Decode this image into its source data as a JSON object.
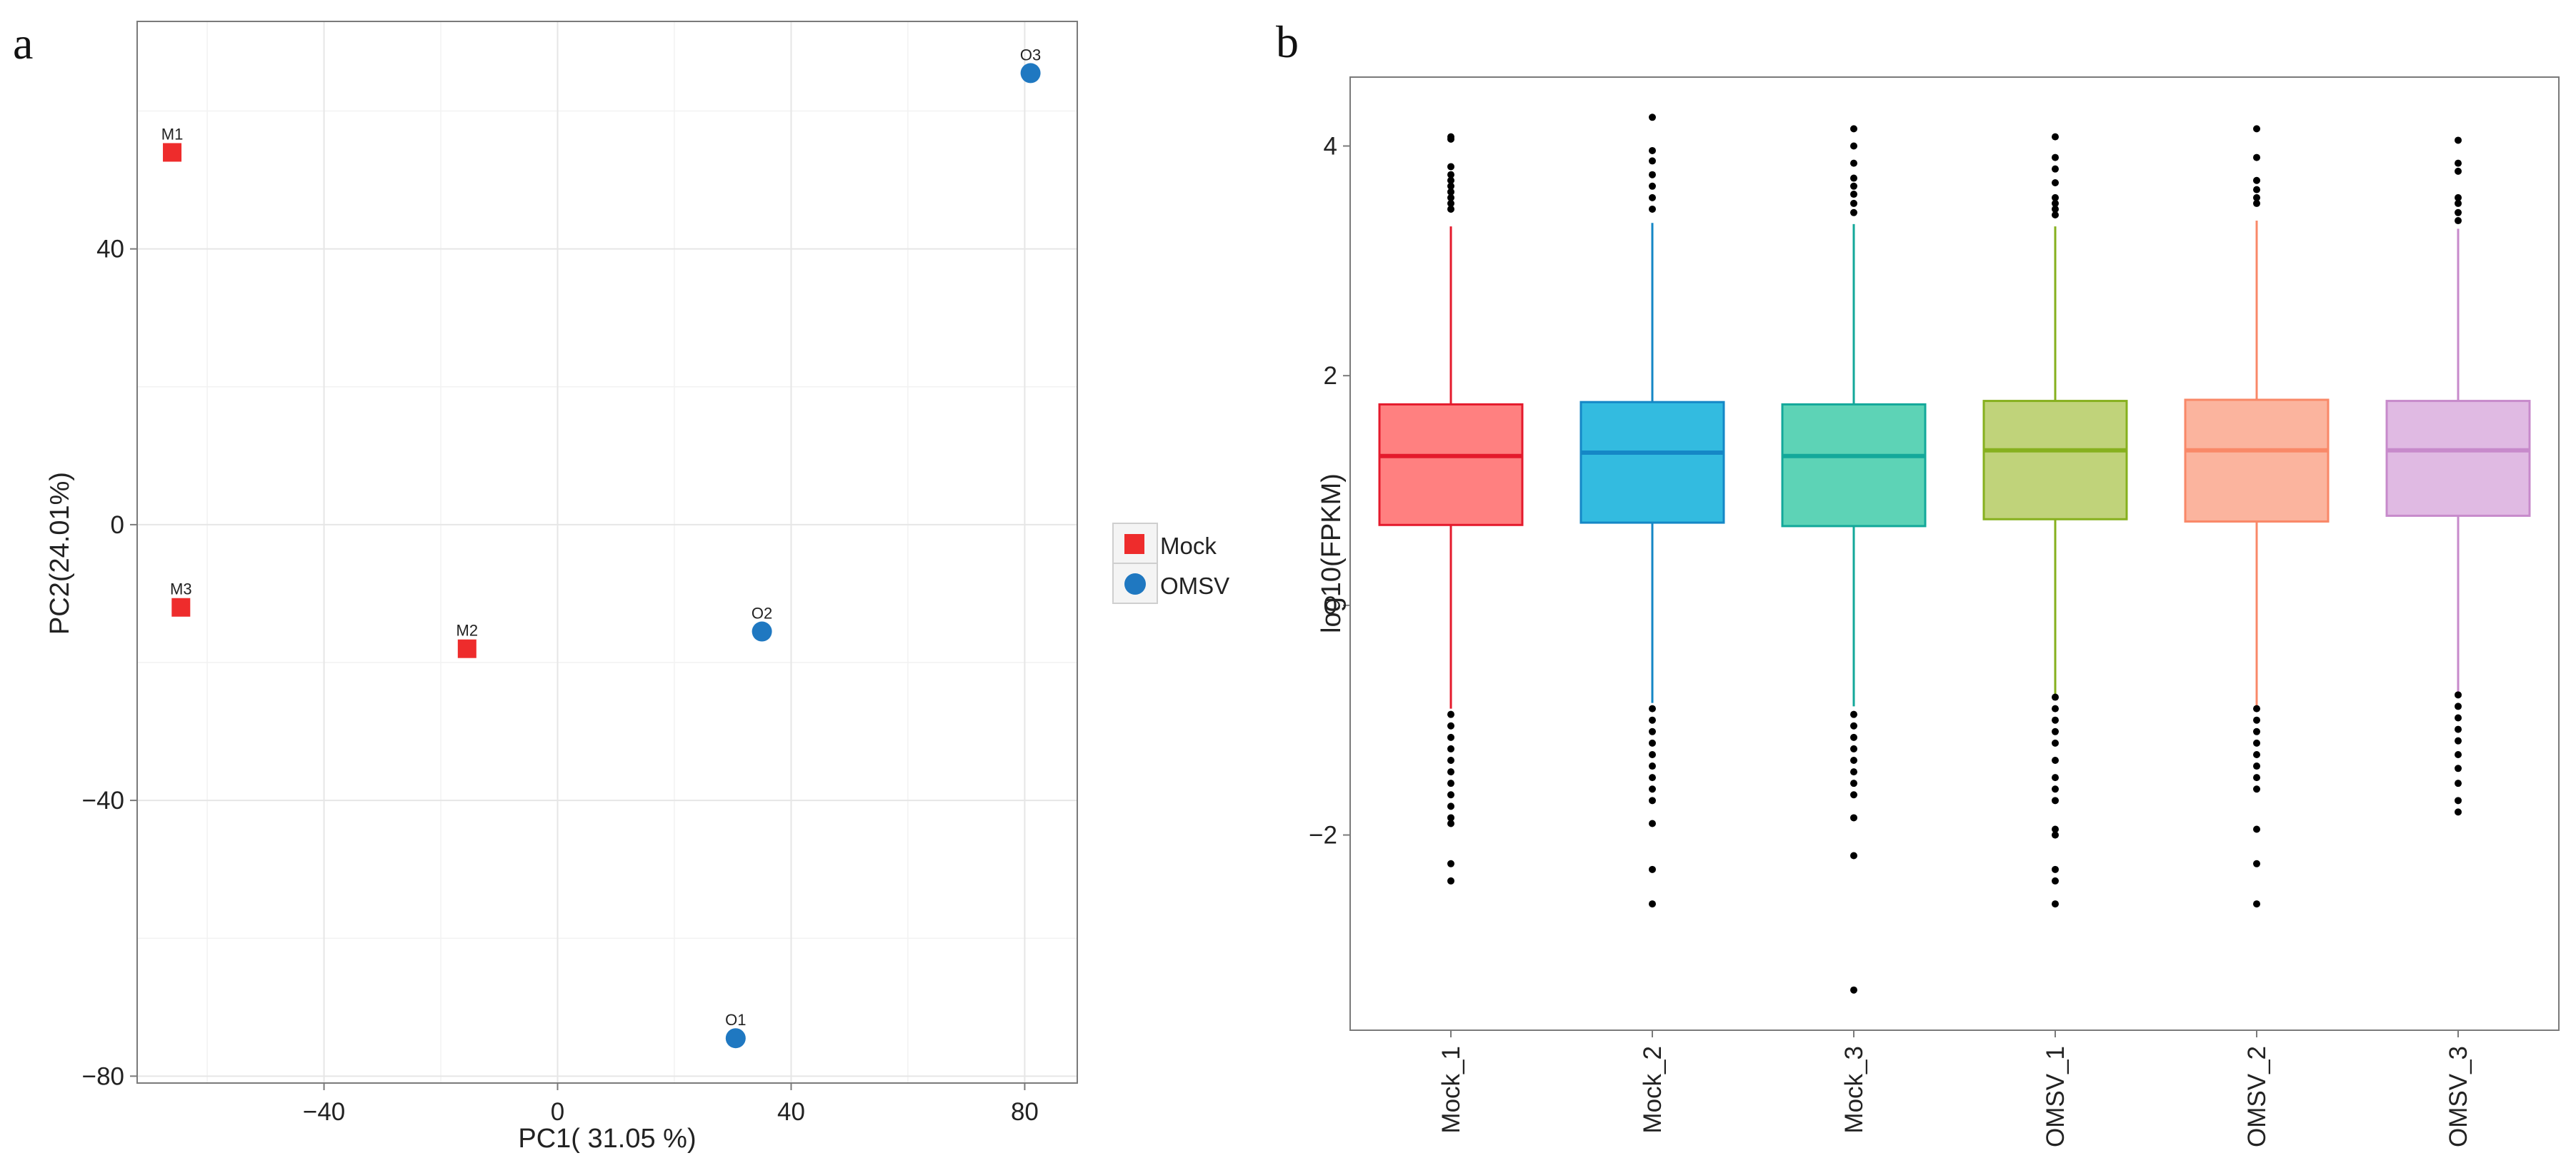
{
  "panels": {
    "a": {
      "letter": "a"
    },
    "b": {
      "letter": "b"
    }
  },
  "chart_data": [
    {
      "type": "scatter",
      "title": "",
      "xlabel": "PC1( 31.05 %)",
      "ylabel": "PC2(24.01%)",
      "xlim": [
        -72,
        89
      ],
      "ylim": [
        -81,
        73
      ],
      "xticks": [
        -40,
        0,
        40,
        80
      ],
      "yticks": [
        -80,
        -40,
        0,
        40
      ],
      "grid": true,
      "legend": {
        "placement": "right",
        "entries": [
          {
            "name": "Mock",
            "color": "#EE2C2C",
            "shape": "square"
          },
          {
            "name": "OMSV",
            "color": "#1F78C1",
            "shape": "circle"
          }
        ]
      },
      "series": [
        {
          "name": "Mock",
          "color": "#EE2C2C",
          "shape": "square",
          "points": [
            {
              "label": "M1",
              "x": -66,
              "y": 54
            },
            {
              "label": "M3",
              "x": -64.5,
              "y": -12
            },
            {
              "label": "M2",
              "x": -15.5,
              "y": -18
            }
          ]
        },
        {
          "name": "OMSV",
          "color": "#1F78C1",
          "shape": "circle",
          "points": [
            {
              "label": "O3",
              "x": 81,
              "y": 65.5
            },
            {
              "label": "O2",
              "x": 35,
              "y": -15.5
            },
            {
              "label": "O1",
              "x": 30.5,
              "y": -74.5
            }
          ]
        }
      ]
    },
    {
      "type": "box",
      "title": "",
      "xlabel": "",
      "ylabel": "log10(FPKM)",
      "ylim": [
        -3.7,
        4.6
      ],
      "yticks": [
        -2,
        0,
        2,
        4
      ],
      "grid": false,
      "categories": [
        "Mock_1",
        "Mock_2",
        "Mock_3",
        "OMSV_1",
        "OMSV_2",
        "OMSV_3"
      ],
      "boxes": [
        {
          "name": "Mock_1",
          "color": "#E41A2C",
          "fill": "#FF8080",
          "whisker_low": -0.9,
          "q1": 0.7,
          "median": 1.3,
          "q3": 1.75,
          "whisker_high": 3.3,
          "outliers_high": [
            3.45,
            3.5,
            3.55,
            3.6,
            3.65,
            3.7,
            3.75,
            3.82,
            4.06,
            4.08
          ],
          "outliers_low": [
            -0.95,
            -1.05,
            -1.15,
            -1.25,
            -1.35,
            -1.45,
            -1.55,
            -1.65,
            -1.75,
            -1.85,
            -1.9,
            -2.25,
            -2.4
          ]
        },
        {
          "name": "Mock_2",
          "color": "#1587C6",
          "fill": "#33BBE0",
          "whisker_low": -0.85,
          "q1": 0.72,
          "median": 1.33,
          "q3": 1.77,
          "whisker_high": 3.33,
          "outliers_high": [
            3.45,
            3.55,
            3.65,
            3.75,
            3.87,
            3.96,
            4.25
          ],
          "outliers_low": [
            -0.9,
            -1.0,
            -1.1,
            -1.2,
            -1.3,
            -1.4,
            -1.5,
            -1.6,
            -1.7,
            -1.9,
            -2.3,
            -2.6
          ]
        },
        {
          "name": "Mock_3",
          "color": "#13A89A",
          "fill": "#5DD3B6",
          "whisker_low": -0.88,
          "q1": 0.69,
          "median": 1.3,
          "q3": 1.75,
          "whisker_high": 3.32,
          "outliers_high": [
            3.42,
            3.5,
            3.58,
            3.65,
            3.72,
            3.85,
            4.0,
            4.15
          ],
          "outliers_low": [
            -0.95,
            -1.05,
            -1.15,
            -1.25,
            -1.35,
            -1.45,
            -1.55,
            -1.65,
            -1.85,
            -2.18,
            -3.35
          ]
        },
        {
          "name": "OMSV_1",
          "color": "#86B01E",
          "fill": "#C0D37A",
          "whisker_low": -0.78,
          "q1": 0.75,
          "median": 1.35,
          "q3": 1.78,
          "whisker_high": 3.3,
          "outliers_high": [
            3.4,
            3.45,
            3.5,
            3.55,
            3.68,
            3.8,
            3.9,
            4.08
          ],
          "outliers_low": [
            -0.8,
            -0.9,
            -1.0,
            -1.1,
            -1.2,
            -1.35,
            -1.5,
            -1.6,
            -1.7,
            -1.95,
            -2.0,
            -2.3,
            -2.4,
            -2.6
          ]
        },
        {
          "name": "OMSV_2",
          "color": "#F98868",
          "fill": "#FBB49E",
          "whisker_low": -0.88,
          "q1": 0.73,
          "median": 1.35,
          "q3": 1.79,
          "whisker_high": 3.35,
          "outliers_high": [
            3.5,
            3.55,
            3.62,
            3.7,
            3.9,
            4.15
          ],
          "outliers_low": [
            -0.9,
            -1.0,
            -1.1,
            -1.2,
            -1.3,
            -1.4,
            -1.5,
            -1.6,
            -1.95,
            -2.25,
            -2.6
          ]
        },
        {
          "name": "OMSV_3",
          "color": "#C78ACB",
          "fill": "#E0BAE3",
          "whisker_low": -0.75,
          "q1": 0.78,
          "median": 1.35,
          "q3": 1.78,
          "whisker_high": 3.28,
          "outliers_high": [
            3.35,
            3.42,
            3.5,
            3.55,
            3.78,
            3.85,
            4.05
          ],
          "outliers_low": [
            -0.78,
            -0.88,
            -0.98,
            -1.08,
            -1.18,
            -1.3,
            -1.42,
            -1.55,
            -1.7,
            -1.8
          ]
        }
      ]
    }
  ]
}
